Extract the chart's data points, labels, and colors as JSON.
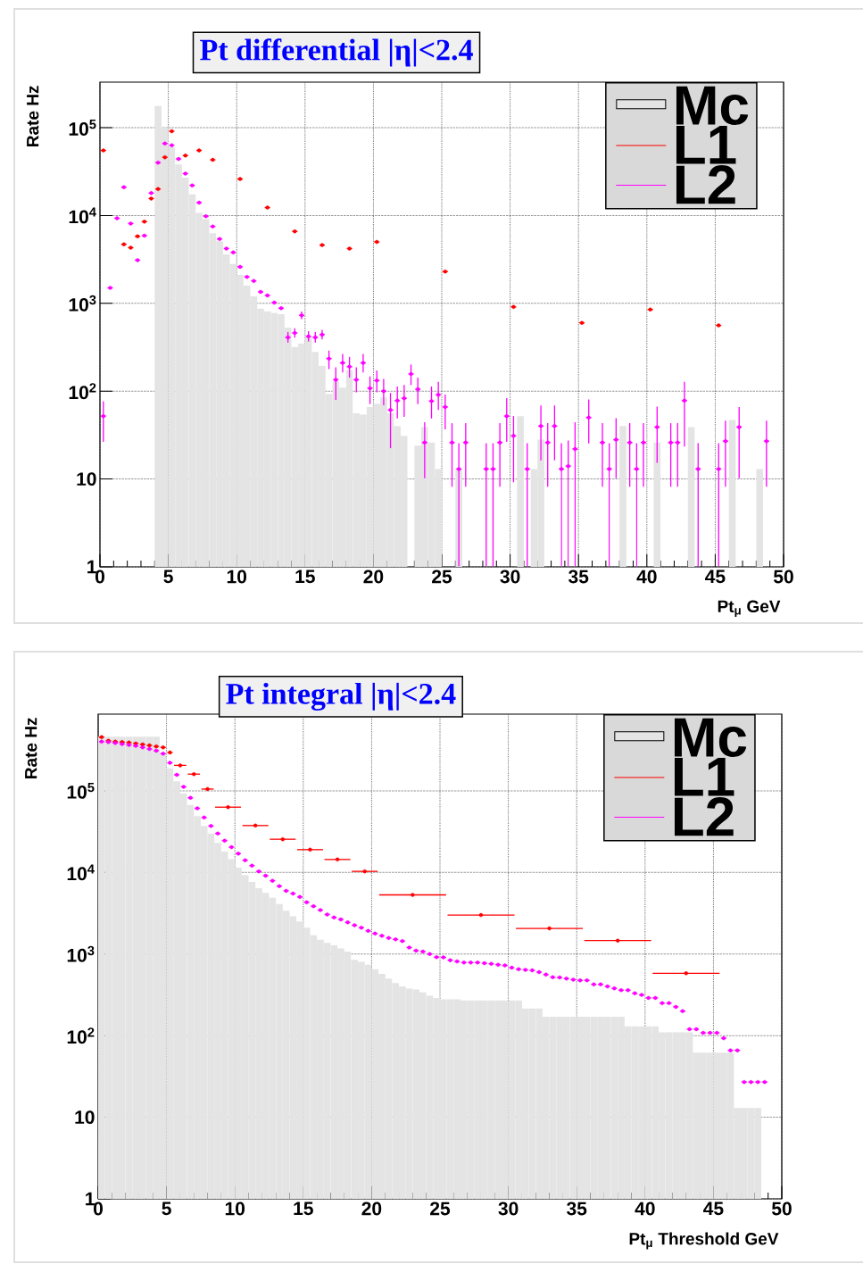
{
  "chart_data": [
    {
      "type": "scatter",
      "title": "Pt differential |η|<2.4",
      "xlabel": "Pt$_{μ}$ GeV",
      "ylabel": "Rate Hz",
      "log": "y",
      "xlim": [
        0,
        50
      ],
      "ylim": [
        1,
        330000
      ],
      "xticks": [
        0,
        5,
        10,
        15,
        20,
        25,
        30,
        35,
        40,
        45,
        50
      ],
      "yticks": [
        1,
        10,
        {
          "value": 100,
          "label": "10$^{2}$"
        },
        {
          "value": 1000,
          "label": "10$^{3}$"
        },
        {
          "value": 10000,
          "label": "10$^{4}$"
        },
        {
          "value": 100000,
          "label": "10$^{5}$"
        }
      ],
      "grid": true,
      "legend": "top right",
      "series": [
        {
          "name": "Mc",
          "type": "histogram",
          "color": "#e4e4e4",
          "bins": [
            4,
            4.5,
            5,
            5.5,
            6,
            6.5,
            7,
            7.5,
            8,
            8.5,
            9,
            9.5,
            10,
            10.5,
            11,
            11.5,
            12,
            12.5,
            13,
            13.5,
            14,
            14.5,
            15,
            15.5,
            16,
            16.5,
            17,
            17.5,
            18,
            18.5,
            19,
            19.5,
            20,
            20.5,
            21,
            21.5,
            22,
            22.5,
            23,
            23.5,
            24,
            24.5,
            25,
            25.5,
            26,
            26.5,
            27,
            27.5,
            28,
            28.5,
            29,
            29.5,
            30,
            30.5,
            31,
            31.5,
            32,
            32.5,
            33,
            33.5,
            34,
            34.5,
            35,
            35.5,
            36,
            36.5,
            37,
            37.5,
            38,
            38.5,
            39,
            39.5,
            40,
            40.5,
            41,
            41.5,
            42,
            42.5,
            43,
            43.5,
            44,
            44.5,
            45,
            45.5,
            46,
            46.5,
            47,
            47.5,
            48,
            48.5,
            49
          ],
          "values": [
            177000,
            100000,
            60000,
            38000,
            27000,
            17400,
            10700,
            9100,
            6300,
            5100,
            3600,
            2800,
            2100,
            1600,
            1200,
            870,
            810,
            780,
            750,
            530,
            320,
            350,
            420,
            280,
            195,
            93,
            130,
            110,
            174,
            56,
            54,
            66,
            72,
            85,
            56,
            40,
            31,
            null,
            24,
            39,
            26,
            13,
            null,
            null,
            13,
            null,
            null,
            null,
            null,
            null,
            null,
            null,
            null,
            52,
            null,
            13,
            28,
            null,
            null,
            null,
            null,
            null,
            null,
            null,
            null,
            null,
            null,
            null,
            40,
            null,
            null,
            null,
            null,
            26,
            null,
            null,
            null,
            null,
            39,
            null,
            null,
            null,
            null,
            null,
            47,
            null,
            null,
            null,
            13,
            null
          ]
        },
        {
          "name": "L1",
          "color": "#ff0000",
          "x": [
            0.25,
            1.75,
            2.25,
            2.75,
            3.25,
            3.75,
            4.25,
            4.75,
            5.25,
            6.25,
            7.25,
            8.25,
            10.25,
            12.25,
            14.25,
            16.25,
            18.25,
            20.25,
            25.25,
            30.25,
            35.25,
            40.25,
            45.25
          ],
          "values": [
            55000,
            4700,
            4300,
            5800,
            8500,
            15600,
            20000,
            46000,
            91000,
            48000,
            55000,
            43000,
            26000,
            12300,
            6600,
            4600,
            4200,
            5000,
            2300,
            910,
            600,
            850,
            560
          ],
          "xerrors": [
            0.25,
            0.25,
            0.25,
            0.25,
            0.25,
            0.25,
            0.25,
            0.25,
            0.25,
            0.25,
            0.25,
            0.25,
            0.25,
            0.25,
            0.25,
            0.25,
            0.25,
            0.25,
            0.25,
            0.25,
            0.25,
            0.25,
            0.25
          ]
        },
        {
          "name": "L2",
          "color": "#ff00ff",
          "x": [
            0.25,
            0.75,
            1.25,
            1.75,
            2.25,
            2.75,
            3.25,
            3.75,
            4.25,
            4.75,
            5.25,
            5.75,
            6.25,
            6.75,
            7.25,
            7.75,
            8.25,
            8.75,
            9.25,
            9.75,
            10.25,
            10.75,
            11.25,
            11.75,
            12.25,
            12.75,
            13.25,
            13.75,
            14.25,
            14.75,
            15.25,
            15.75,
            16.25,
            16.75,
            17.25,
            17.75,
            18.25,
            18.75,
            19.25,
            19.75,
            20.25,
            20.75,
            21.25,
            21.75,
            22.25,
            22.75,
            23.25,
            23.75,
            24.25,
            24.75,
            25.25,
            25.75,
            26.25,
            26.75,
            28.25,
            28.75,
            29.25,
            29.75,
            30.25,
            31.25,
            32.25,
            32.75,
            33.25,
            33.75,
            34.25,
            34.75,
            35.75,
            36.75,
            37.25,
            37.75,
            38.75,
            39.25,
            39.75,
            40.75,
            41.75,
            42.25,
            42.75,
            43.75,
            45.25,
            45.75,
            46.75,
            48.75
          ],
          "values": [
            52,
            1500,
            9300,
            21000,
            8100,
            3100,
            5900,
            18000,
            40000,
            66000,
            63000,
            44000,
            30000,
            22000,
            14000,
            9800,
            7500,
            5400,
            4200,
            3800,
            2600,
            2000,
            1800,
            1350,
            1230,
            1020,
            880,
            410,
            460,
            730,
            420,
            410,
            440,
            235,
            135,
            210,
            190,
            135,
            210,
            108,
            132,
            100,
            61,
            78,
            83,
            157,
            105,
            26,
            77,
            91,
            66,
            26,
            13,
            26,
            13,
            13,
            26,
            52,
            31,
            13,
            40,
            26,
            40,
            13,
            14,
            22,
            50,
            26,
            13,
            28,
            26,
            13,
            26,
            39,
            26,
            26,
            78,
            13,
            13,
            27,
            39,
            27
          ],
          "errors": [
            [
              26,
              78
            ],
            null,
            null,
            null,
            null,
            null,
            null,
            null,
            null,
            null,
            null,
            null,
            null,
            null,
            null,
            null,
            null,
            null,
            null,
            null,
            null,
            null,
            null,
            null,
            null,
            null,
            null,
            [
              350,
              480
            ],
            [
              400,
              530
            ],
            [
              650,
              820
            ],
            [
              360,
              490
            ],
            [
              350,
              480
            ],
            [
              380,
              510
            ],
            [
              175,
              295
            ],
            [
              78,
              190
            ],
            [
              160,
              270
            ],
            [
              140,
              250
            ],
            [
              95,
              190
            ],
            [
              160,
              270
            ],
            [
              70,
              150
            ],
            [
              95,
              175
            ],
            [
              68,
              140
            ],
            [
              22,
              97
            ],
            [
              48,
              115
            ],
            [
              50,
              120
            ],
            [
              115,
              205
            ],
            [
              70,
              145
            ],
            [
              10,
              45
            ],
            [
              48,
              115
            ],
            [
              60,
              130
            ],
            [
              36,
              93
            ],
            [
              8,
              44
            ],
            [
              1,
              26
            ],
            [
              8,
              44
            ],
            [
              1,
              26
            ],
            [
              1,
              26
            ],
            [
              8,
              44
            ],
            [
              26,
              85
            ],
            [
              9,
              53
            ],
            [
              1,
              26
            ],
            [
              16,
              70
            ],
            [
              8,
              44
            ],
            [
              16,
              70
            ],
            [
              1,
              26
            ],
            [
              1,
              28
            ],
            [
              1,
              45
            ],
            [
              25,
              82
            ],
            [
              8,
              44
            ],
            [
              1,
              26
            ],
            [
              10,
              50
            ],
            [
              8,
              44
            ],
            [
              1,
              26
            ],
            [
              8,
              44
            ],
            [
              15,
              68
            ],
            [
              8,
              44
            ],
            [
              8,
              44
            ],
            [
              23,
              130
            ],
            [
              1,
              26
            ],
            [
              1,
              26
            ],
            [
              8,
              47
            ],
            [
              10,
              67
            ],
            [
              8,
              47
            ]
          ],
          "xerrors": [
            0.25,
            0.25,
            0.25,
            0.25,
            0.25,
            0.25,
            0.25,
            0.25,
            0.25,
            0.25,
            0.25,
            0.25,
            0.25,
            0.25,
            0.25,
            0.25,
            0.25,
            0.25,
            0.25,
            0.25,
            0.25,
            0.25,
            0.25,
            0.25,
            0.25,
            0.25,
            0.25,
            0.25,
            0.25,
            0.25,
            0.25,
            0.25,
            0.25,
            0.25,
            0.25,
            0.25,
            0.25,
            0.25,
            0.25,
            0.25,
            0.25,
            0.25,
            0.25,
            0.25,
            0.25,
            0.25,
            0.25,
            0.25,
            0.25,
            0.25,
            0.25,
            0.25,
            0.25,
            0.25,
            0.25,
            0.25,
            0.25,
            0.25,
            0.25,
            0.25,
            0.25,
            0.25,
            0.25,
            0.25,
            0.25,
            0.25,
            0.25,
            0.25,
            0.25,
            0.25,
            0.25,
            0.25,
            0.25,
            0.25,
            0.25,
            0.25,
            0.25,
            0.25,
            0.25,
            0.25,
            0.25,
            0.25
          ]
        }
      ]
    },
    {
      "type": "scatter",
      "title": "Pt integral |η|<2.4",
      "xlabel": "Pt$_{μ}$ Threshold GeV",
      "ylabel": "Rate Hz",
      "log": "y",
      "xlim": [
        0,
        50
      ],
      "ylim": [
        1,
        870000
      ],
      "xticks": [
        0,
        5,
        10,
        15,
        20,
        25,
        30,
        35,
        40,
        45,
        50
      ],
      "yticks": [
        1,
        10,
        {
          "value": 100,
          "label": "10$^{2}$"
        },
        {
          "value": 1000,
          "label": "10$^{3}$"
        },
        {
          "value": 10000,
          "label": "10$^{4}$"
        },
        {
          "value": 100000,
          "label": "10$^{5}$"
        }
      ],
      "grid": true,
      "legend": "top right",
      "series": [
        {
          "name": "Mc",
          "type": "histogram",
          "color": "#e4e4e4",
          "bins": [
            0,
            0.5,
            1,
            1.5,
            2,
            2.5,
            3,
            3.5,
            4,
            4.5,
            5,
            5.5,
            6,
            6.5,
            7,
            7.5,
            8,
            8.5,
            9,
            9.5,
            10,
            10.5,
            11,
            11.5,
            12,
            12.5,
            13,
            13.5,
            14,
            14.5,
            15,
            15.5,
            16,
            16.5,
            17,
            17.5,
            18,
            18.5,
            19,
            19.5,
            20,
            20.5,
            21,
            21.5,
            22,
            22.5,
            23,
            23.5,
            24,
            24.5,
            25,
            25.5,
            26,
            26.5,
            27,
            27.5,
            28,
            28.5,
            29,
            29.5,
            30,
            30.5,
            31,
            31.5,
            32,
            32.5,
            33,
            33.5,
            34,
            34.5,
            35,
            35.5,
            36,
            36.5,
            37,
            37.5,
            38,
            38.5,
            39,
            39.5,
            40,
            40.5,
            41,
            41.5,
            42,
            42.5,
            43,
            43.5,
            44,
            44.5,
            45,
            45.5,
            46,
            46.5,
            47,
            47.5,
            48,
            48.5
          ],
          "values": [
            460000,
            460000,
            460000,
            460000,
            460000,
            460000,
            460000,
            460000,
            460000,
            290000,
            190000,
            131000,
            93000,
            67000,
            49000,
            37000,
            30000,
            23000,
            18000,
            14500,
            11500,
            9200,
            7700,
            6400,
            5600,
            4900,
            4100,
            3400,
            2900,
            2500,
            2100,
            1700,
            1500,
            1370,
            1280,
            1170,
            1070,
            850,
            800,
            740,
            650,
            570,
            500,
            440,
            400,
            380,
            370,
            340,
            310,
            290,
            280,
            280,
            280,
            270,
            270,
            270,
            270,
            270,
            270,
            270,
            270,
            270,
            215,
            215,
            215,
            170,
            170,
            170,
            170,
            170,
            170,
            170,
            170,
            170,
            170,
            170,
            170,
            130,
            130,
            130,
            130,
            130,
            110,
            110,
            110,
            110,
            110,
            62,
            62,
            62,
            62,
            62,
            62,
            13,
            13,
            13,
            13
          ]
        },
        {
          "name": "L1",
          "color": "#ff0000",
          "x": [
            0.25,
            0.75,
            1.25,
            1.75,
            2.25,
            2.75,
            3.25,
            3.75,
            4.25,
            4.75,
            5.25,
            6,
            7,
            8,
            9.5,
            11.5,
            13.5,
            15.5,
            17.5,
            19.5,
            23,
            28,
            33,
            38,
            43
          ],
          "values": [
            455000,
            410000,
            400000,
            395000,
            390000,
            380000,
            370000,
            360000,
            350000,
            340000,
            295000,
            205000,
            160000,
            105000,
            63000,
            37500,
            25500,
            19000,
            14400,
            10300,
            5300,
            3000,
            2060,
            1460,
            580
          ],
          "xerrors": [
            0.25,
            0.25,
            0.25,
            0.25,
            0.25,
            0.25,
            0.25,
            0.25,
            0.25,
            0.25,
            0.25,
            0.5,
            0.5,
            0.5,
            1,
            1,
            1,
            1,
            1,
            1,
            2.5,
            2.5,
            2.5,
            2.5,
            2.5
          ]
        },
        {
          "name": "L2",
          "color": "#ff00ff",
          "x": [
            0.25,
            0.75,
            1.25,
            1.75,
            2.25,
            2.75,
            3.25,
            3.75,
            4.25,
            4.75,
            5.25,
            5.75,
            6.25,
            6.75,
            7.25,
            7.75,
            8.25,
            8.75,
            9.25,
            9.75,
            10.25,
            10.75,
            11.25,
            11.75,
            12.25,
            12.75,
            13.25,
            13.75,
            14.25,
            14.75,
            15.25,
            15.75,
            16.25,
            16.75,
            17.25,
            17.75,
            18.25,
            18.75,
            19.25,
            19.75,
            20.25,
            20.75,
            21.25,
            21.75,
            22.25,
            22.75,
            23.25,
            23.75,
            24.25,
            24.75,
            25.25,
            25.75,
            26.25,
            26.75,
            27.25,
            27.75,
            28.25,
            28.75,
            29.25,
            29.75,
            30.25,
            30.75,
            31.25,
            31.75,
            32.25,
            32.75,
            33.25,
            33.75,
            34.25,
            34.75,
            35.25,
            35.75,
            36.25,
            36.75,
            37.25,
            37.75,
            38.25,
            38.75,
            39.25,
            39.75,
            40.25,
            40.75,
            41.25,
            41.75,
            42.25,
            42.75,
            43.25,
            43.75,
            44.25,
            44.75,
            45.25,
            45.75,
            46.25,
            46.75,
            47.25,
            47.75,
            48.25,
            48.75
          ],
          "values": [
            400000,
            395000,
            385000,
            375000,
            365000,
            355000,
            340000,
            325000,
            310000,
            285000,
            220000,
            157000,
            112000,
            82000,
            61000,
            47000,
            37000,
            30000,
            24500,
            20400,
            17000,
            14100,
            12100,
            10300,
            9100,
            7900,
            6800,
            5950,
            5500,
            5000,
            4300,
            3850,
            3450,
            3050,
            2800,
            2650,
            2440,
            2250,
            2100,
            1920,
            1780,
            1670,
            1570,
            1510,
            1440,
            1200,
            1100,
            1070,
            1000,
            915,
            910,
            840,
            810,
            785,
            785,
            785,
            770,
            760,
            740,
            725,
            680,
            650,
            640,
            630,
            600,
            560,
            520,
            515,
            500,
            485,
            475,
            475,
            425,
            425,
            400,
            380,
            360,
            360,
            330,
            315,
            290,
            290,
            250,
            250,
            225,
            200,
            120,
            120,
            108,
            108,
            108,
            93,
            66,
            66,
            27,
            27,
            27,
            27
          ],
          "xerrors": [
            0.25,
            0.25,
            0.25,
            0.25,
            0.25,
            0.25,
            0.25,
            0.25,
            0.25,
            0.25,
            0.25,
            0.25,
            0.25,
            0.25,
            0.25,
            0.25,
            0.25,
            0.25,
            0.25,
            0.25,
            0.25,
            0.25,
            0.25,
            0.25,
            0.25,
            0.25,
            0.25,
            0.25,
            0.25,
            0.25,
            0.25,
            0.25,
            0.25,
            0.25,
            0.25,
            0.25,
            0.25,
            0.25,
            0.25,
            0.25,
            0.25,
            0.25,
            0.25,
            0.25,
            0.25,
            0.25,
            0.25,
            0.25,
            0.25,
            0.25,
            0.25,
            0.25,
            0.25,
            0.25,
            0.25,
            0.25,
            0.25,
            0.25,
            0.25,
            0.25,
            0.25,
            0.25,
            0.25,
            0.25,
            0.25,
            0.25,
            0.25,
            0.25,
            0.25,
            0.25,
            0.25,
            0.25,
            0.25,
            0.25,
            0.25,
            0.25,
            0.25,
            0.25,
            0.25,
            0.25,
            0.25,
            0.25,
            0.25,
            0.25,
            0.25,
            0.25,
            0.25,
            0.25,
            0.25,
            0.25,
            0.25,
            0.25,
            0.25,
            0.25,
            0.25,
            0.25,
            0.25,
            0.25
          ]
        }
      ]
    }
  ]
}
